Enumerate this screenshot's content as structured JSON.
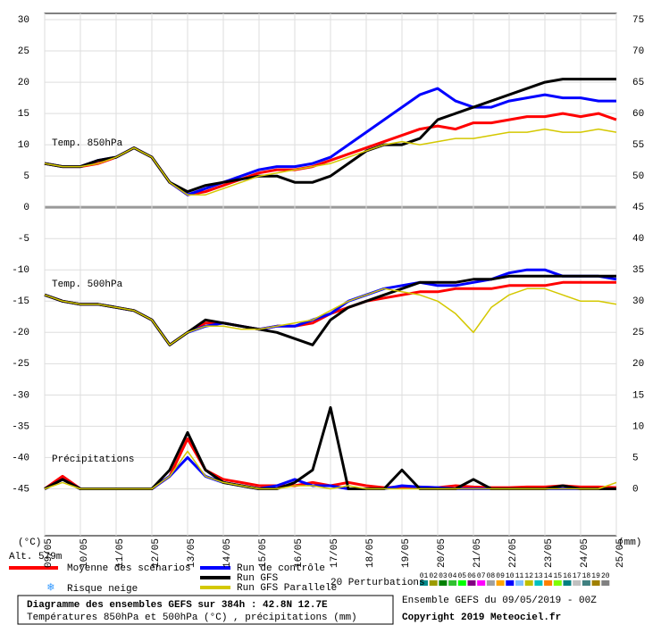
{
  "chart_data": {
    "type": "line",
    "title": "Diagramme des ensembles GEFS sur 384h : 42.8N 12.7E",
    "subtitle": "Températures 850hPa et 500hPa (°C) , précipitations (mm)",
    "run_info": "Ensemble GEFS du 09/05/2019 - 00Z",
    "copyright": "Copyright 2019 Meteociel.fr",
    "altitude": "Alt. 579m",
    "y_unit": "(°C)",
    "y2_unit": "(mm)",
    "panel_labels": [
      "Temp. 850hPa",
      "Temp. 500hPa",
      "Précipitations"
    ],
    "snow_label": "Risque neige",
    "perturbations_label": "20 Perturbations",
    "perturbations": [
      {
        "label": "01",
        "color": "#008b8b"
      },
      {
        "label": "02",
        "color": "#9b9b00"
      },
      {
        "label": "03",
        "color": "#008000"
      },
      {
        "label": "04",
        "color": "#30c030"
      },
      {
        "label": "05",
        "color": "#00ff00"
      },
      {
        "label": "06",
        "color": "#800080"
      },
      {
        "label": "07",
        "color": "#ff00ff"
      },
      {
        "label": "08",
        "color": "#a0a0a0"
      },
      {
        "label": "09",
        "color": "#ffa500"
      },
      {
        "label": "10",
        "color": "#0000ff"
      },
      {
        "label": "11",
        "color": "#80c0ff"
      },
      {
        "label": "12",
        "color": "#c0c000"
      },
      {
        "label": "13",
        "color": "#00c0c0"
      },
      {
        "label": "14",
        "color": "#ff8000"
      },
      {
        "label": "15",
        "color": "#80ff00"
      },
      {
        "label": "16",
        "color": "#008080"
      },
      {
        "label": "17",
        "color": "#c0c0c0"
      },
      {
        "label": "18",
        "color": "#408080"
      },
      {
        "label": "19",
        "color": "#a08000"
      },
      {
        "label": "20",
        "color": "#808080"
      }
    ],
    "xlim": [
      0,
      384
    ],
    "xticks": [
      {
        "value": 0,
        "label": "09/05"
      },
      {
        "value": 24,
        "label": "10/05"
      },
      {
        "value": 48,
        "label": "11/05"
      },
      {
        "value": 72,
        "label": "12/05"
      },
      {
        "value": 96,
        "label": "13/05"
      },
      {
        "value": 120,
        "label": "14/05"
      },
      {
        "value": 144,
        "label": "15/05"
      },
      {
        "value": 168,
        "label": "16/05"
      },
      {
        "value": 192,
        "label": "17/05"
      },
      {
        "value": 216,
        "label": "18/05"
      },
      {
        "value": 240,
        "label": "19/05"
      },
      {
        "value": 264,
        "label": "20/05"
      },
      {
        "value": 288,
        "label": "21/05"
      },
      {
        "value": 312,
        "label": "22/05"
      },
      {
        "value": 336,
        "label": "23/05"
      },
      {
        "value": 360,
        "label": "24/05"
      },
      {
        "value": 384,
        "label": "25/05"
      }
    ],
    "ylim": [
      -52.5,
      31
    ],
    "yticks": [
      -45,
      -40,
      -35,
      -30,
      -25,
      -20,
      -15,
      -10,
      -5,
      0,
      5,
      10,
      15,
      20,
      25,
      30
    ],
    "y2lim": [
      -7.5,
      76
    ],
    "y2ticks": [
      0,
      5,
      10,
      15,
      20,
      25,
      30,
      35,
      40,
      45,
      50,
      55,
      60,
      65,
      70,
      75
    ],
    "grid": true,
    "x": [
      0,
      12,
      24,
      36,
      48,
      60,
      72,
      84,
      96,
      108,
      120,
      132,
      144,
      156,
      168,
      180,
      192,
      204,
      216,
      228,
      240,
      252,
      264,
      276,
      288,
      300,
      312,
      324,
      336,
      348,
      360,
      372,
      384
    ],
    "series": [
      {
        "name": "Moyenne des scénarios",
        "color": "#ff0000",
        "width": 3,
        "t850": [
          7,
          6.5,
          6.5,
          7,
          8,
          9.5,
          8,
          4,
          2,
          2.5,
          3.5,
          4.5,
          5.5,
          6,
          6,
          6.5,
          7.5,
          8.5,
          9.5,
          10.5,
          11.5,
          12.5,
          13,
          12.5,
          13.5,
          13.5,
          14,
          14.5,
          14.5,
          15,
          14.5,
          15,
          14
        ],
        "t500": [
          -14,
          -15,
          -15.5,
          -15.5,
          -16,
          -16.5,
          -18,
          -22,
          -20,
          -18.5,
          -18.5,
          -19,
          -19.5,
          -19,
          -19,
          -18.5,
          -17,
          -16,
          -15,
          -14.5,
          -14,
          -13.5,
          -13.5,
          -13,
          -13,
          -13,
          -12.5,
          -12.5,
          -12.5,
          -12,
          -12,
          -12,
          -12
        ],
        "precip": [
          0,
          2,
          0,
          0,
          0,
          0,
          0,
          2,
          8,
          3,
          1.5,
          1,
          0.5,
          0.5,
          0.5,
          1,
          0.5,
          1,
          0.5,
          0.2,
          0.3,
          0.3,
          0.2,
          0.5,
          0.3,
          0.2,
          0.2,
          0.3,
          0.3,
          0.5,
          0.3,
          0.3,
          0.2
        ]
      },
      {
        "name": "Run de contrôle",
        "color": "#0000ff",
        "width": 3,
        "t850": [
          7,
          6.5,
          6.5,
          7.5,
          8,
          9.5,
          8,
          4,
          2,
          3,
          4,
          5,
          6,
          6.5,
          6.5,
          7,
          8,
          10,
          12,
          14,
          16,
          18,
          19,
          17,
          16,
          16,
          17,
          17.5,
          18,
          17.5,
          17.5,
          17,
          17
        ],
        "t500": [
          -14,
          -15,
          -15.5,
          -15.5,
          -16,
          -16.5,
          -18,
          -22,
          -20,
          -19,
          -18.5,
          -19,
          -19.5,
          -19,
          -19,
          -18,
          -17,
          -15,
          -14,
          -13,
          -12.5,
          -12,
          -12.5,
          -12.5,
          -12,
          -11.5,
          -10.5,
          -10,
          -10,
          -11,
          -11,
          -11,
          -11.5
        ],
        "precip": [
          0,
          1.5,
          0,
          0,
          0,
          0,
          0,
          2,
          5,
          2,
          1,
          0.5,
          0,
          0.5,
          1.5,
          0.5,
          0.5,
          0,
          0,
          0,
          0.5,
          0.3,
          0.2,
          0,
          0,
          0,
          0,
          0,
          0,
          0,
          0,
          0,
          0
        ]
      },
      {
        "name": "Run GFS",
        "color": "#000000",
        "width": 3,
        "t850": [
          7,
          6.5,
          6.5,
          7.5,
          8,
          9.5,
          8,
          4,
          2.5,
          3.5,
          4,
          4.5,
          5,
          5,
          4,
          4,
          5,
          7,
          9,
          10,
          10,
          11,
          14,
          15,
          16,
          17,
          18,
          19,
          20,
          20.5,
          20.5,
          20.5,
          20.5
        ],
        "t500": [
          -14,
          -15,
          -15.5,
          -15.5,
          -16,
          -16.5,
          -18,
          -22,
          -20,
          -18,
          -18.5,
          -19,
          -19.5,
          -20,
          -21,
          -22,
          -18,
          -16,
          -15,
          -14,
          -13,
          -12,
          -12,
          -12,
          -11.5,
          -11.5,
          -11,
          -11,
          -11,
          -11,
          -11,
          -11,
          -11
        ],
        "precip": [
          0,
          1.5,
          0,
          0,
          0,
          0,
          0,
          3,
          9,
          3,
          1,
          0.5,
          0,
          0,
          1,
          3,
          13,
          0,
          0,
          0,
          3,
          0,
          0,
          0,
          1.5,
          0,
          0,
          0,
          0,
          0.5,
          0,
          0,
          0
        ]
      },
      {
        "name": "Run GFS Parallele",
        "color": "#d4c800",
        "width": 1.5,
        "t850": [
          7,
          6.5,
          6.5,
          7,
          8,
          9.5,
          8,
          4,
          2,
          2,
          3,
          4,
          5,
          5.5,
          6,
          6.5,
          7,
          8,
          9,
          10,
          10.5,
          10,
          10.5,
          11,
          11,
          11.5,
          12,
          12,
          12.5,
          12,
          12,
          12.5,
          12
        ],
        "t500": [
          -14,
          -15,
          -15.5,
          -15.5,
          -16,
          -16.5,
          -18,
          -22,
          -20,
          -19,
          -19,
          -19.5,
          -19.5,
          -19,
          -18.5,
          -18,
          -16.5,
          -15,
          -14,
          -13,
          -13.5,
          -14,
          -15,
          -17,
          -20,
          -16,
          -14,
          -13,
          -13,
          -14,
          -15,
          -15,
          -15.5
        ],
        "precip": [
          0,
          1,
          0,
          0,
          0,
          0,
          0,
          2,
          6,
          2,
          1,
          0.5,
          0,
          0,
          0.5,
          0.5,
          0,
          0.5,
          0,
          0,
          0,
          0,
          0,
          0,
          0,
          0,
          0,
          0,
          0,
          0,
          0,
          0,
          1
        ]
      }
    ]
  }
}
